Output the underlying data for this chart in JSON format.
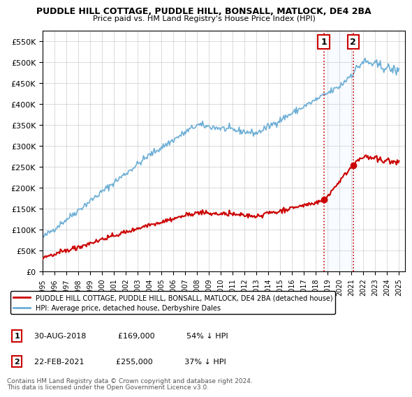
{
  "title1": "PUDDLE HILL COTTAGE, PUDDLE HILL, BONSALL, MATLOCK, DE4 2BA",
  "title2": "Price paid vs. HM Land Registry's House Price Index (HPI)",
  "ylabel_ticks": [
    "£0",
    "£50K",
    "£100K",
    "£150K",
    "£200K",
    "£250K",
    "£300K",
    "£350K",
    "£400K",
    "£450K",
    "£500K",
    "£550K"
  ],
  "ytick_values": [
    0,
    50000,
    100000,
    150000,
    200000,
    250000,
    300000,
    350000,
    400000,
    450000,
    500000,
    550000
  ],
  "hpi_color": "#6baed6",
  "price_color": "#cc0000",
  "shaded_color": "#ddeeff",
  "marker1_date_x": 2018.66,
  "marker1_date_label": "30-AUG-2018",
  "marker1_price_label": "£169,000",
  "marker1_pct": "54% ↓ HPI",
  "marker2_date_x": 2021.13,
  "marker2_date_label": "22-FEB-2021",
  "marker2_price_label": "£255,000",
  "marker2_pct": "37% ↓ HPI",
  "marker1_price": 169000,
  "marker2_price": 255000,
  "legend_line1": "PUDDLE HILL COTTAGE, PUDDLE HILL, BONSALL, MATLOCK, DE4 2BA (detached house)",
  "legend_line2": "HPI: Average price, detached house, Derbyshire Dales",
  "footnote1": "Contains HM Land Registry data © Crown copyright and database right 2024.",
  "footnote2": "This data is licensed under the Open Government Licence v3.0.",
  "xmin": 1995,
  "xmax": 2025.5,
  "ymin": 0,
  "ymax": 575000
}
